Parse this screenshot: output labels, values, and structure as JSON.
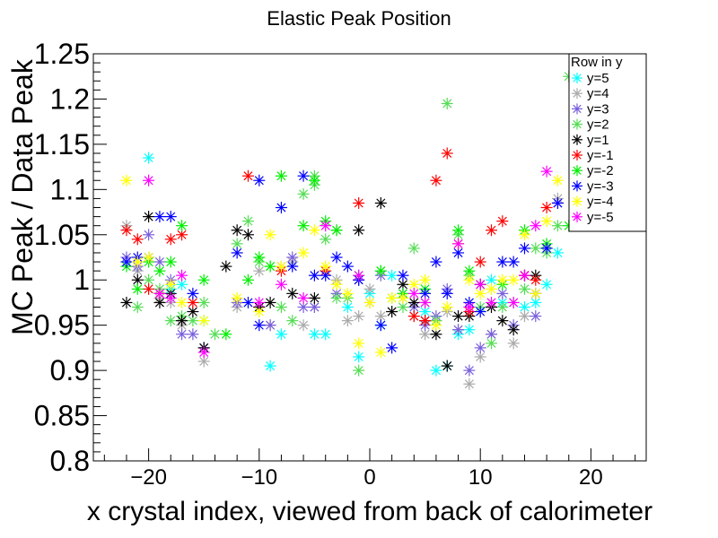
{
  "chart_data": {
    "type": "scatter",
    "title": "Elastic Peak Position",
    "xlabel": "x crystal index, viewed from back of calorimeter",
    "ylabel": "MC Peak / Data Peak",
    "xlim": [
      -25,
      25
    ],
    "ylim": [
      0.8,
      1.25
    ],
    "x_ticks": [
      "−20",
      "−10",
      "0",
      "10",
      "20"
    ],
    "x_tick_values": [
      -20,
      -10,
      0,
      10,
      20
    ],
    "y_ticks": [
      "0.8",
      "0.85",
      "0.9",
      "0.95",
      "1",
      "1.05",
      "1.1",
      "1.15",
      "1.2",
      "1.25"
    ],
    "y_tick_values": [
      0.8,
      0.85,
      0.9,
      0.95,
      1.0,
      1.05,
      1.1,
      1.15,
      1.2,
      1.25
    ],
    "grid": false,
    "legend_placement": "top-right",
    "legend_title": "Row in y",
    "series": [
      {
        "name": "y=5",
        "color": "#00ffff",
        "marker": "star",
        "points": [
          [
            -20,
            1.135
          ],
          [
            -18,
            0.99
          ],
          [
            -17,
            0.995
          ],
          [
            -15,
            0.955
          ],
          [
            -9,
            0.905
          ],
          [
            -8,
            0.94
          ],
          [
            -5,
            0.94
          ],
          [
            -4,
            0.94
          ],
          [
            -2,
            0.97
          ],
          [
            -1,
            0.915
          ],
          [
            0,
            0.985
          ],
          [
            1,
            0.95
          ],
          [
            2,
            1.005
          ],
          [
            5,
            0.965
          ],
          [
            6,
            0.9
          ],
          [
            7,
            0.905
          ],
          [
            8,
            0.94
          ],
          [
            9,
            0.945
          ],
          [
            11,
            1.0
          ],
          [
            12,
            0.975
          ],
          [
            14,
            0.97
          ],
          [
            15,
            0.975
          ],
          [
            16,
            0.995
          ],
          [
            17,
            1.03
          ]
        ]
      },
      {
        "name": "y=4",
        "color": "#aaaaaa",
        "marker": "star",
        "points": [
          [
            -22,
            1.06
          ],
          [
            -21,
            1.01
          ],
          [
            -19,
            0.98
          ],
          [
            -18,
            0.975
          ],
          [
            -17,
            0.95
          ],
          [
            -15,
            0.91
          ],
          [
            -12,
            0.97
          ],
          [
            -10,
            1.01
          ],
          [
            -9,
            0.95
          ],
          [
            -7,
            1.02
          ],
          [
            -6,
            0.95
          ],
          [
            -5,
            0.97
          ],
          [
            -3,
            1.0
          ],
          [
            -2,
            0.955
          ],
          [
            -1,
            0.96
          ],
          [
            0,
            0.99
          ],
          [
            1,
            0.96
          ],
          [
            2,
            0.965
          ],
          [
            3,
            0.98
          ],
          [
            4,
            0.96
          ],
          [
            5,
            0.94
          ],
          [
            6,
            0.955
          ],
          [
            7,
            0.965
          ],
          [
            8,
            0.945
          ],
          [
            9,
            0.885
          ],
          [
            10,
            0.915
          ],
          [
            11,
            0.94
          ],
          [
            13,
            0.93
          ],
          [
            14,
            0.96
          ],
          [
            17,
            1.09
          ]
        ]
      },
      {
        "name": "y=3",
        "color": "#7a5fdc",
        "marker": "star",
        "points": [
          [
            -22,
            1.025
          ],
          [
            -21,
            1.015
          ],
          [
            -20,
            1.05
          ],
          [
            -19,
            1.02
          ],
          [
            -18,
            1.0
          ],
          [
            -17,
            0.94
          ],
          [
            -16,
            0.94
          ],
          [
            -15,
            0.925
          ],
          [
            -12,
            0.975
          ],
          [
            -10,
            0.97
          ],
          [
            -9,
            0.95
          ],
          [
            -8,
            1.015
          ],
          [
            -7,
            1.025
          ],
          [
            -6,
            0.97
          ],
          [
            -5,
            0.97
          ],
          [
            -3,
            0.985
          ],
          [
            -1,
            1.0
          ],
          [
            0,
            0.975
          ],
          [
            1,
            1.005
          ],
          [
            3,
            0.985
          ],
          [
            4,
            0.97
          ],
          [
            5,
            0.95
          ],
          [
            6,
            0.96
          ],
          [
            7,
            0.99
          ],
          [
            8,
            0.945
          ],
          [
            9,
            0.9
          ],
          [
            10,
            0.925
          ],
          [
            11,
            0.94
          ],
          [
            12,
            0.985
          ],
          [
            13,
            0.95
          ],
          [
            15,
            0.96
          ],
          [
            16,
            1.035
          ],
          [
            17,
            1.085
          ]
        ]
      },
      {
        "name": "y=2",
        "color": "#55dd55",
        "marker": "star",
        "points": [
          [
            -21,
            0.97
          ],
          [
            -20,
            1.0
          ],
          [
            -19,
            0.99
          ],
          [
            -18,
            0.955
          ],
          [
            -17,
            0.96
          ],
          [
            -16,
            0.955
          ],
          [
            -15,
            0.975
          ],
          [
            -14,
            0.94
          ],
          [
            -12,
            1.04
          ],
          [
            -11,
            1.065
          ],
          [
            -10,
            1.02
          ],
          [
            -9,
            1.015
          ],
          [
            -8,
            0.97
          ],
          [
            -7,
            0.955
          ],
          [
            -6,
            1.095
          ],
          [
            -5,
            1.115
          ],
          [
            -5,
            1.105
          ],
          [
            -4,
            1.045
          ],
          [
            -3,
            1.055
          ],
          [
            -3,
            0.98
          ],
          [
            -2,
            0.98
          ],
          [
            -1,
            0.9
          ],
          [
            1,
            1.01
          ],
          [
            2,
            0.98
          ],
          [
            3,
            0.97
          ],
          [
            4,
            1.035
          ],
          [
            5,
            0.975
          ],
          [
            6,
            0.955
          ],
          [
            7,
            1.195
          ],
          [
            8,
            1.05
          ],
          [
            9,
            1.005
          ],
          [
            10,
            0.97
          ],
          [
            11,
            0.93
          ],
          [
            12,
            0.97
          ],
          [
            13,
            0.975
          ],
          [
            14,
            0.99
          ],
          [
            15,
            1.035
          ],
          [
            16,
            1.03
          ],
          [
            17,
            1.06
          ],
          [
            18,
            1.225
          ]
        ]
      },
      {
        "name": "y=1",
        "color": "#000000",
        "marker": "star",
        "points": [
          [
            -22,
            0.975
          ],
          [
            -21,
            1.0
          ],
          [
            -20,
            1.07
          ],
          [
            -19,
            0.975
          ],
          [
            -18,
            0.985
          ],
          [
            -17,
            0.955
          ],
          [
            -16,
            0.965
          ],
          [
            -15,
            0.925
          ],
          [
            -13,
            1.015
          ],
          [
            -12,
            1.055
          ],
          [
            -11,
            1.05
          ],
          [
            -10,
            0.97
          ],
          [
            -9,
            0.975
          ],
          [
            -7,
            0.985
          ],
          [
            -5,
            0.98
          ],
          [
            -1,
            1.055
          ],
          [
            1,
            1.085
          ],
          [
            2,
            0.965
          ],
          [
            3,
            0.995
          ],
          [
            4,
            0.975
          ],
          [
            5,
            0.955
          ],
          [
            6,
            0.94
          ],
          [
            7,
            0.905
          ],
          [
            8,
            0.96
          ],
          [
            9,
            0.96
          ],
          [
            10,
            0.995
          ],
          [
            11,
            0.97
          ],
          [
            12,
            0.955
          ],
          [
            13,
            0.945
          ],
          [
            14,
            1.005
          ],
          [
            15,
            1.005
          ]
        ]
      },
      {
        "name": "y=-1",
        "color": "#ff0000",
        "marker": "star",
        "points": [
          [
            -22,
            1.055
          ],
          [
            -21,
            1.045
          ],
          [
            -20,
            0.99
          ],
          [
            -19,
            0.985
          ],
          [
            -18,
            1.045
          ],
          [
            -17,
            1.05
          ],
          [
            -16,
            0.975
          ],
          [
            -11,
            1.115
          ],
          [
            -8,
            1.01
          ],
          [
            -4,
            1.01
          ],
          [
            -1,
            1.085
          ],
          [
            4,
            0.96
          ],
          [
            5,
            0.955
          ],
          [
            6,
            1.11
          ],
          [
            7,
            1.14
          ],
          [
            8,
            1.04
          ],
          [
            9,
            0.965
          ],
          [
            10,
            1.02
          ],
          [
            11,
            1.055
          ],
          [
            12,
            1.065
          ],
          [
            14,
            1.005
          ],
          [
            15,
            1.0
          ],
          [
            16,
            1.08
          ]
        ]
      },
      {
        "name": "y=-2",
        "color": "#00ee00",
        "marker": "star",
        "points": [
          [
            -22,
            1.015
          ],
          [
            -21,
            0.99
          ],
          [
            -20,
            1.02
          ],
          [
            -19,
            1.01
          ],
          [
            -18,
            1.02
          ],
          [
            -17,
            1.06
          ],
          [
            -15,
            1.0
          ],
          [
            -13,
            0.94
          ],
          [
            -11,
            1.0
          ],
          [
            -10,
            1.025
          ],
          [
            -9,
            1.015
          ],
          [
            -8,
            1.115
          ],
          [
            -6,
            1.06
          ],
          [
            -5,
            1.11
          ],
          [
            -4,
            1.065
          ],
          [
            -3,
            1.055
          ],
          [
            -1,
            1.005
          ],
          [
            1,
            1.01
          ],
          [
            3,
            0.985
          ],
          [
            5,
            0.99
          ],
          [
            8,
            1.055
          ],
          [
            9,
            1.01
          ],
          [
            12,
            0.995
          ],
          [
            14,
            1.055
          ],
          [
            16,
            1.04
          ],
          [
            18,
            1.06
          ]
        ]
      },
      {
        "name": "y=-3",
        "color": "#0000ff",
        "marker": "star",
        "points": [
          [
            -22,
            1.02
          ],
          [
            -21,
            1.025
          ],
          [
            -20,
            1.025
          ],
          [
            -19,
            1.07
          ],
          [
            -18,
            1.07
          ],
          [
            -16,
            0.985
          ],
          [
            -12,
            1.03
          ],
          [
            -11,
            0.975
          ],
          [
            -10,
            1.11
          ],
          [
            -10,
            0.95
          ],
          [
            -8,
            1.08
          ],
          [
            -7,
            1.015
          ],
          [
            -6,
            1.115
          ],
          [
            -5,
            1.005
          ],
          [
            -4,
            1.005
          ],
          [
            -3,
            1.025
          ],
          [
            -2,
            1.015
          ],
          [
            -1,
            1.0
          ],
          [
            1,
            0.95
          ],
          [
            2,
            0.925
          ],
          [
            3,
            1.005
          ],
          [
            5,
            0.985
          ],
          [
            6,
            1.02
          ],
          [
            7,
            0.985
          ],
          [
            8,
            1.03
          ],
          [
            9,
            0.975
          ],
          [
            10,
            0.965
          ],
          [
            12,
            1.02
          ],
          [
            13,
            1.02
          ],
          [
            14,
            1.035
          ],
          [
            15,
            0.985
          ],
          [
            16,
            1.035
          ],
          [
            17,
            1.085
          ]
        ]
      },
      {
        "name": "y=-4",
        "color": "#ffff00",
        "marker": "star",
        "points": [
          [
            -22,
            1.11
          ],
          [
            -21,
            1.02
          ],
          [
            -20,
            1.025
          ],
          [
            -18,
            0.995
          ],
          [
            -17,
            0.975
          ],
          [
            -15,
            0.955
          ],
          [
            -12,
            0.98
          ],
          [
            -10,
            0.965
          ],
          [
            -9,
            1.05
          ],
          [
            -8,
            1.015
          ],
          [
            -6,
            1.03
          ],
          [
            -5,
            1.055
          ],
          [
            -4,
            1.015
          ],
          [
            -3,
            0.995
          ],
          [
            -2,
            0.985
          ],
          [
            -1,
            0.93
          ],
          [
            0,
            0.975
          ],
          [
            1,
            0.92
          ],
          [
            2,
            0.98
          ],
          [
            3,
            0.98
          ],
          [
            4,
            0.995
          ],
          [
            5,
            1.0
          ],
          [
            6,
            0.95
          ],
          [
            7,
            0.97
          ],
          [
            8,
            1.04
          ],
          [
            9,
            1.0
          ],
          [
            10,
            0.985
          ],
          [
            11,
            0.99
          ],
          [
            12,
            1.0
          ],
          [
            13,
            1.0
          ],
          [
            14,
            1.05
          ],
          [
            15,
            0.985
          ],
          [
            16,
            1.065
          ],
          [
            17,
            1.11
          ]
        ]
      },
      {
        "name": "y=-5",
        "color": "#ff00ff",
        "marker": "star",
        "points": [
          [
            -20,
            1.11
          ],
          [
            -19,
            0.985
          ],
          [
            -18,
            0.98
          ],
          [
            -17,
            1.005
          ],
          [
            -15,
            0.92
          ],
          [
            -10,
            0.975
          ],
          [
            -8,
            0.995
          ],
          [
            -6,
            0.98
          ],
          [
            -4,
            1.06
          ],
          [
            -1,
            1.005
          ],
          [
            4,
            0.985
          ],
          [
            5,
            0.975
          ],
          [
            8,
            1.04
          ],
          [
            9,
            0.97
          ],
          [
            10,
            0.995
          ],
          [
            11,
            0.975
          ],
          [
            13,
            0.975
          ],
          [
            14,
            1.005
          ],
          [
            15,
            1.06
          ],
          [
            16,
            1.12
          ]
        ]
      }
    ]
  }
}
